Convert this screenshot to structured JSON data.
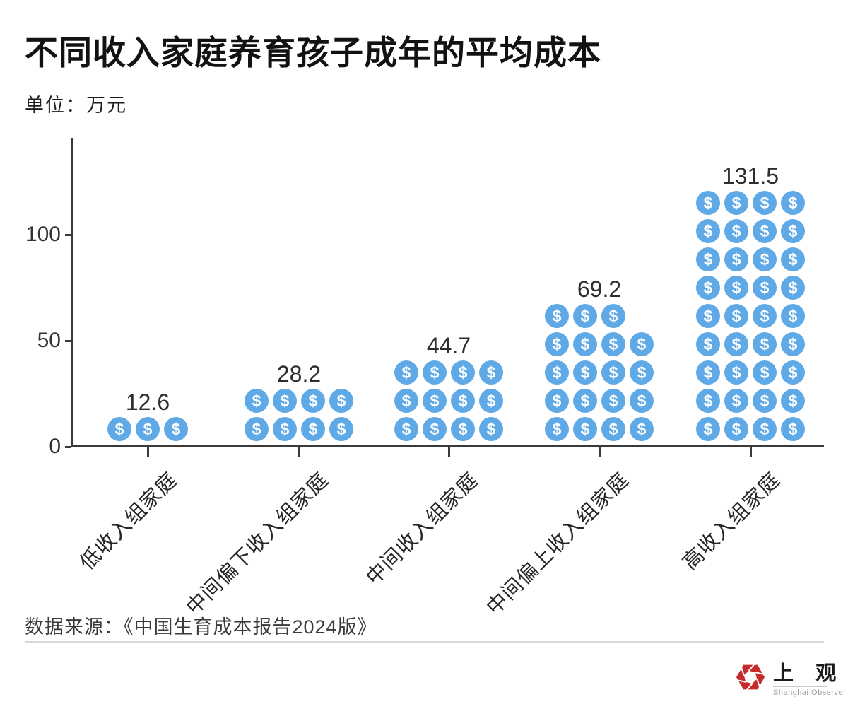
{
  "title": "不同收入家庭养育孩子成年的平均成本",
  "unit_label": "单位：万元",
  "source": "数据来源：《中国生育成本报告2024版》",
  "logo": {
    "cn": "上 观",
    "en": "Shanghai Observer",
    "icon_color": "#c62a2a"
  },
  "chart_data": {
    "type": "bar",
    "variant": "pictogram",
    "title": "不同收入家庭养育孩子成年的平均成本",
    "unit": "万元",
    "icon": "dollar-coin-icon",
    "icon_symbol": "$",
    "icon_color": "#5faae6",
    "categories": [
      "低收入组家庭",
      "中间偏下收入组家庭",
      "中间收入组家庭",
      "中间偏上收入组家庭",
      "高收入组家庭"
    ],
    "values": [
      12.6,
      28.2,
      44.7,
      69.2,
      131.5
    ],
    "icon_counts": [
      3,
      8,
      12,
      19,
      36
    ],
    "icon_rows_bottom_up": [
      [
        3
      ],
      [
        4,
        4
      ],
      [
        4,
        4,
        4
      ],
      [
        4,
        4,
        4,
        4,
        3
      ],
      [
        4,
        4,
        4,
        4,
        4,
        4,
        4,
        4,
        4
      ]
    ],
    "xlabel": "",
    "ylabel": "",
    "yticks": [
      0,
      50,
      100
    ],
    "ylim": [
      0,
      145
    ],
    "grid": false,
    "legend": "none"
  }
}
